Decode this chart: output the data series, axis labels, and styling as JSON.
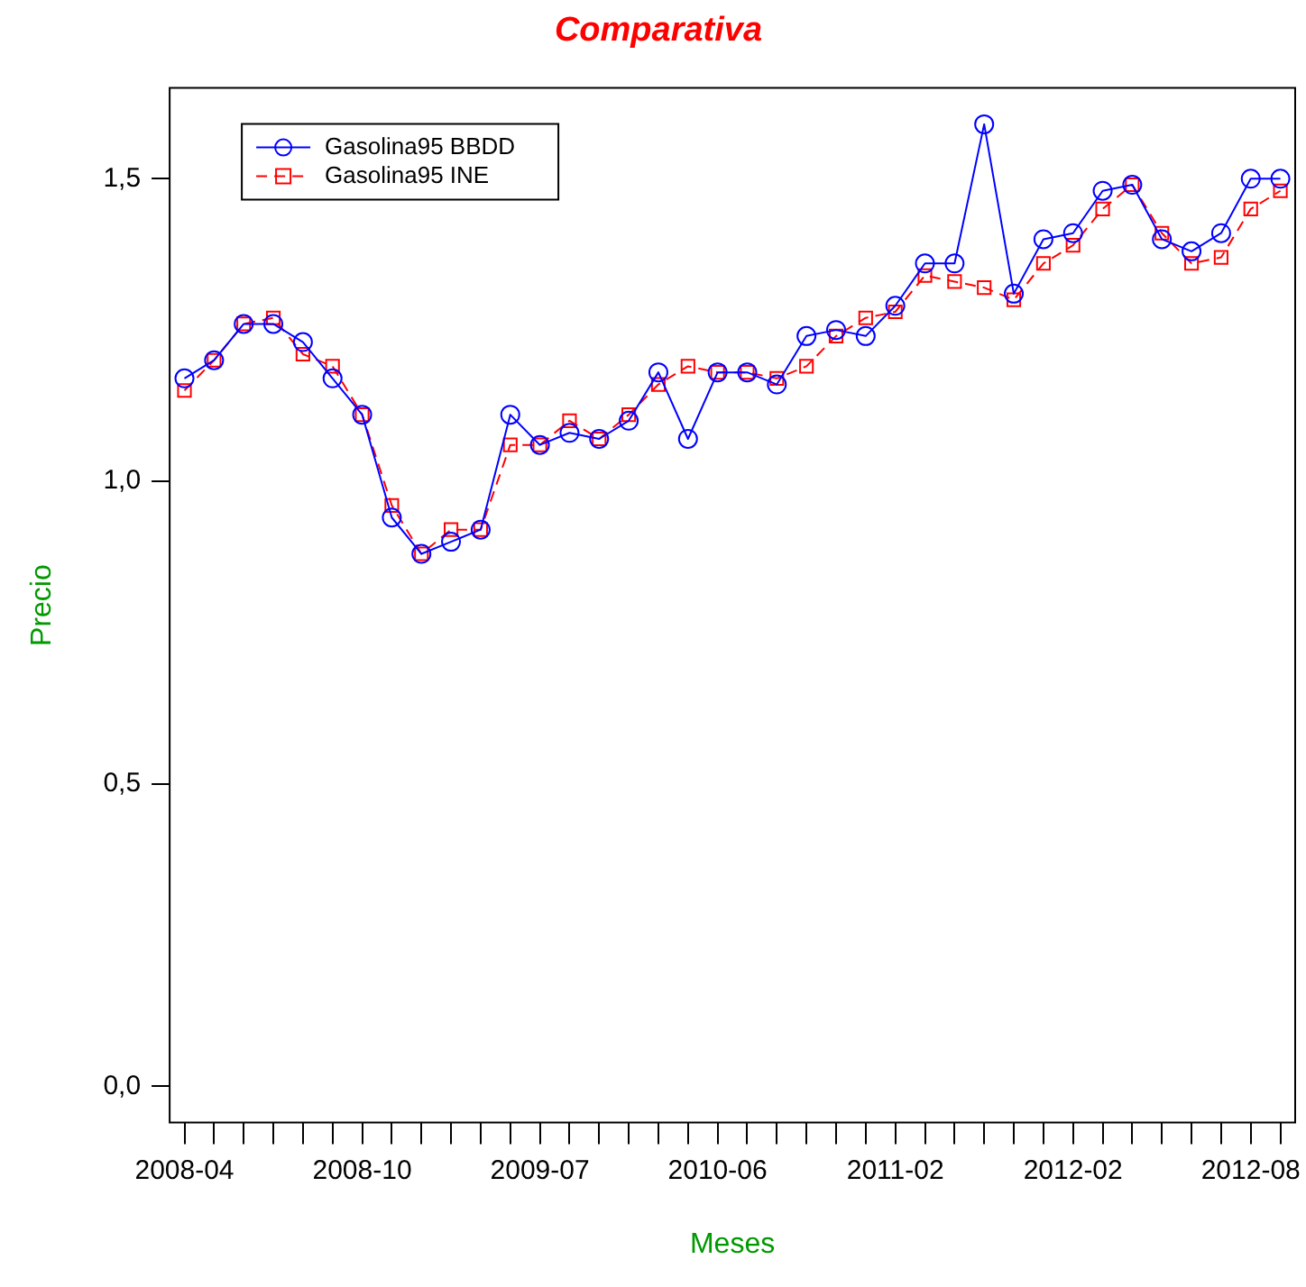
{
  "chart_data": {
    "type": "line",
    "title": "Comparativa",
    "xlabel": "Meses",
    "ylabel": "Precio",
    "categories": [
      "2008-04",
      null,
      null,
      null,
      null,
      null,
      "2008-10",
      null,
      null,
      null,
      null,
      null,
      "2009-07",
      null,
      null,
      null,
      null,
      null,
      "2010-06",
      null,
      null,
      null,
      null,
      null,
      "2011-02",
      null,
      null,
      null,
      null,
      null,
      "2012-02",
      null,
      null,
      null,
      null,
      null,
      "2012-08",
      null
    ],
    "series": [
      {
        "name": "Gasolina95 BBDD",
        "color": "#0000ff",
        "marker": "circle",
        "line_style": "solid",
        "values": [
          1.17,
          1.2,
          1.26,
          1.26,
          1.23,
          1.17,
          1.11,
          0.94,
          0.88,
          0.9,
          0.92,
          1.11,
          1.06,
          1.08,
          1.07,
          1.1,
          1.18,
          1.07,
          1.18,
          1.18,
          1.16,
          1.24,
          1.25,
          1.24,
          1.29,
          1.36,
          1.36,
          1.59,
          1.31,
          1.4,
          1.41,
          1.48,
          1.49,
          1.4,
          1.38,
          1.41,
          1.5,
          1.5
        ]
      },
      {
        "name": "Gasolina95 INE",
        "color": "#ff0000",
        "marker": "square",
        "line_style": "dashed",
        "values": [
          1.15,
          1.2,
          1.26,
          1.27,
          1.21,
          1.19,
          1.11,
          0.96,
          0.88,
          0.92,
          0.92,
          1.06,
          1.06,
          1.1,
          1.07,
          1.11,
          1.16,
          1.19,
          1.18,
          1.18,
          1.17,
          1.19,
          1.24,
          1.27,
          1.28,
          1.34,
          1.33,
          1.32,
          1.3,
          1.36,
          1.39,
          1.45,
          1.49,
          1.41,
          1.36,
          1.37,
          1.45,
          1.48
        ]
      }
    ],
    "ylim": [
      -0.06,
      1.65
    ],
    "yticks": [
      {
        "value": 0,
        "label": "0,0"
      },
      {
        "value": 0.5,
        "label": "0,5"
      },
      {
        "value": 1,
        "label": "1,0"
      },
      {
        "value": 1.5,
        "label": "1,5"
      }
    ],
    "grid": false,
    "legend": "top left"
  }
}
